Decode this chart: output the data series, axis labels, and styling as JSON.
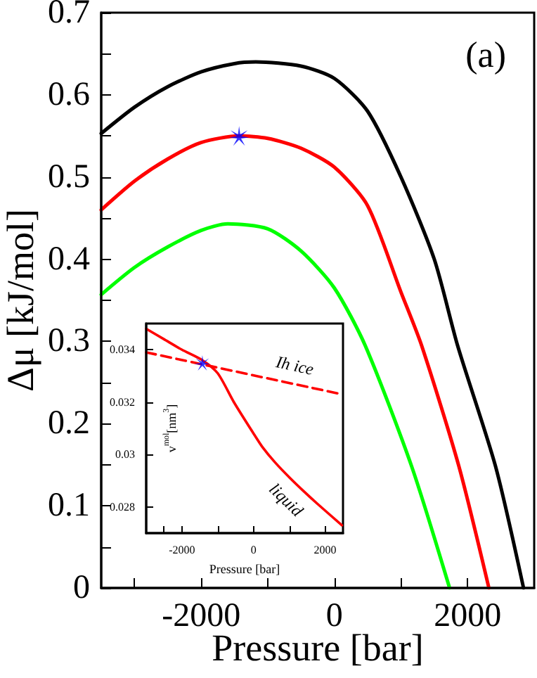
{
  "chart_data": [
    {
      "type": "line",
      "xlabel": "Pressure [bar]",
      "ylabel": "Δμ [kJ/mol]",
      "annotations": [
        "(a)"
      ],
      "xlim": [
        -3500,
        3000
      ],
      "ylim": [
        0,
        0.7
      ],
      "xticks": [
        {
          "value": -3000,
          "label": null
        },
        -2000,
        {
          "value": -1000,
          "label": null
        },
        0,
        {
          "value": 1000,
          "label": null
        },
        2000
      ],
      "yticks": [
        0,
        {
          "value": 0.05,
          "label": null
        },
        0.1,
        {
          "value": 0.15,
          "label": null
        },
        0.2,
        {
          "value": 0.25,
          "label": null
        },
        0.3,
        {
          "value": 0.35,
          "label": null
        },
        0.4,
        {
          "value": 0.45,
          "label": null
        },
        0.5,
        {
          "value": 0.55,
          "label": null
        },
        0.6,
        {
          "value": 0.65,
          "label": null
        },
        0.7
      ],
      "marker": "none",
      "line_style": "solid",
      "series": [
        {
          "color": "#000000",
          "x": [
            -3500,
            -3000,
            -2500,
            -2000,
            -1500,
            -1180,
            -500,
            0,
            500,
            1000,
            1500,
            1850,
            2420,
            2840
          ],
          "values": [
            0.553,
            0.585,
            0.61,
            0.628,
            0.638,
            0.64,
            0.635,
            0.62,
            0.58,
            0.5,
            0.4,
            0.295,
            0.148,
            0
          ]
        },
        {
          "color": "#ff0000",
          "x": [
            -3500,
            -3000,
            -2500,
            -2000,
            -1430,
            -1000,
            -500,
            0,
            500,
            1000,
            1310,
            1870,
            2320
          ],
          "values": [
            0.46,
            0.495,
            0.522,
            0.542,
            0.55,
            0.547,
            0.535,
            0.512,
            0.465,
            0.36,
            0.295,
            0.148,
            0
          ]
        },
        {
          "color": "#00ff00",
          "x": [
            -3500,
            -3000,
            -2500,
            -2000,
            -1600,
            -1000,
            -500,
            0,
            463,
            1160,
            1730
          ],
          "values": [
            0.357,
            0.39,
            0.415,
            0.435,
            0.443,
            0.437,
            0.41,
            0.365,
            0.295,
            0.148,
            0
          ]
        },
        {
          "type": "scatter",
          "marker": "star",
          "color": "#0000ff",
          "x": [
            -1430
          ],
          "values": [
            0.55
          ]
        }
      ]
    },
    {
      "type": "line",
      "xlabel": "Pressure [bar]",
      "ylabel": "v$^{mol}$[nm$^{3}$]",
      "xlim": [
        -3000,
        2500
      ],
      "ylim": [
        0.027,
        0.035
      ],
      "xticks": [
        {
          "value": -2500,
          "label": null
        },
        -2000,
        {
          "value": -1000,
          "label": null
        },
        0,
        {
          "value": 1000,
          "label": null
        },
        2000
      ],
      "yticks": [
        0.028,
        0.03,
        0.032,
        0.034
      ],
      "marker": "none",
      "series": [
        {
          "name": "liquid",
          "color": "#ff0000",
          "line_style": "solid",
          "x": [
            -3000,
            -2500,
            -2000,
            -1430,
            -1000,
            -550,
            0,
            240,
            600,
            1020,
            1400,
            1800,
            2470
          ],
          "values": [
            0.0348,
            0.0344,
            0.034,
            0.0336,
            0.0331,
            0.032,
            0.0308,
            0.0303,
            0.0297,
            0.0291,
            0.0286,
            0.0281,
            0.0273
          ]
        },
        {
          "name": "Ih ice",
          "color": "#ff0000",
          "line_style": "dashed",
          "x": [
            -3000,
            2470
          ],
          "values": [
            0.0339,
            0.0323
          ]
        },
        {
          "type": "scatter",
          "marker": "star",
          "color": "#0000ff",
          "x": [
            -1430
          ],
          "values": [
            0.0335
          ]
        }
      ]
    }
  ]
}
